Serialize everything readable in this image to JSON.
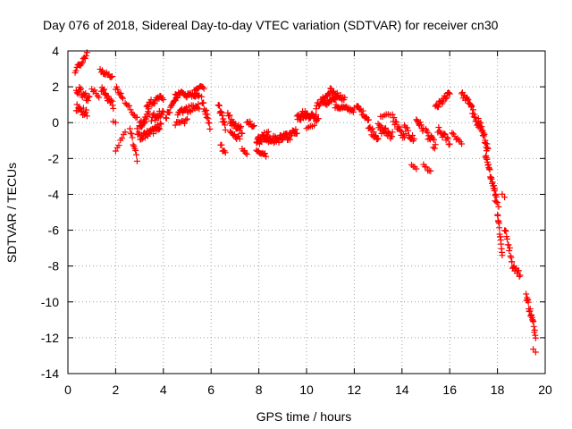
{
  "chart_data": {
    "type": "scatter",
    "title": "Day 076 of 2018, Sidereal Day-to-day VTEC variation (SDTVAR) for receiver cn30",
    "xlabel": "GPS time / hours",
    "ylabel": "SDTVAR / TECUs",
    "xlim": [
      0,
      20
    ],
    "ylim": [
      -14,
      4
    ],
    "xticks": [
      0,
      2,
      4,
      6,
      8,
      10,
      12,
      14,
      16,
      18,
      20
    ],
    "yticks": [
      -14,
      -12,
      -10,
      -8,
      -6,
      -4,
      -2,
      0,
      2,
      4
    ],
    "grid": true,
    "marker": "+",
    "color": "#ff0000",
    "series": [
      {
        "name": "SDTVAR",
        "segments": [
          {
            "x_start": 0.3,
            "x_end": 0.8,
            "y_start": 2.9,
            "y_end": 3.8,
            "spread": 0.25,
            "n": 14
          },
          {
            "x_start": 0.35,
            "x_end": 0.9,
            "y_start": 1.9,
            "y_end": 1.3,
            "spread": 0.45,
            "n": 18
          },
          {
            "x_start": 0.35,
            "x_end": 0.8,
            "y_start": 0.8,
            "y_end": 0.6,
            "spread": 0.5,
            "n": 16
          },
          {
            "x_start": 1.0,
            "x_end": 1.3,
            "y_start": 1.9,
            "y_end": 1.5,
            "spread": 0.25,
            "n": 6
          },
          {
            "x_start": 1.35,
            "x_end": 1.85,
            "y_start": 2.9,
            "y_end": 2.6,
            "spread": 0.2,
            "n": 12
          },
          {
            "x_start": 1.4,
            "x_end": 1.9,
            "y_start": 1.9,
            "y_end": 1.0,
            "spread": 0.45,
            "n": 18
          },
          {
            "x_start": 1.9,
            "x_end": 2.0,
            "y_start": 0.1,
            "y_end": 0.0,
            "spread": 0.1,
            "n": 2
          },
          {
            "x_start": 2.0,
            "x_end": 2.3,
            "y_start": 2.0,
            "y_end": 1.4,
            "spread": 0.3,
            "n": 8
          },
          {
            "x_start": 2.0,
            "x_end": 2.4,
            "y_start": -1.6,
            "y_end": -0.6,
            "spread": 0.3,
            "n": 7
          },
          {
            "x_start": 2.4,
            "x_end": 2.9,
            "y_start": 1.2,
            "y_end": 0.3,
            "spread": 0.3,
            "n": 10
          },
          {
            "x_start": 2.6,
            "x_end": 2.9,
            "y_start": -0.3,
            "y_end": -2.1,
            "spread": 0.3,
            "n": 10
          },
          {
            "x_start": 2.9,
            "x_end": 3.4,
            "y_start": -0.5,
            "y_end": 0.6,
            "spread": 0.5,
            "n": 22
          },
          {
            "x_start": 3.0,
            "x_end": 3.9,
            "y_start": -0.8,
            "y_end": -0.2,
            "spread": 0.4,
            "n": 32
          },
          {
            "x_start": 3.3,
            "x_end": 4.0,
            "y_start": 1.0,
            "y_end": 1.4,
            "spread": 0.35,
            "n": 20
          },
          {
            "x_start": 3.5,
            "x_end": 4.0,
            "y_start": 0.2,
            "y_end": 0.6,
            "spread": 0.5,
            "n": 16
          },
          {
            "x_start": 4.1,
            "x_end": 4.6,
            "y_start": 0.3,
            "y_end": 1.4,
            "spread": 0.3,
            "n": 16
          },
          {
            "x_start": 4.5,
            "x_end": 5.5,
            "y_start": 1.6,
            "y_end": 1.5,
            "spread": 0.3,
            "n": 30
          },
          {
            "x_start": 4.6,
            "x_end": 5.5,
            "y_start": 0.6,
            "y_end": 0.9,
            "spread": 0.35,
            "n": 26
          },
          {
            "x_start": 4.5,
            "x_end": 5.0,
            "y_start": -0.1,
            "y_end": 0.1,
            "spread": 0.25,
            "n": 10
          },
          {
            "x_start": 5.3,
            "x_end": 5.7,
            "y_start": 1.8,
            "y_end": 2.0,
            "spread": 0.2,
            "n": 10
          },
          {
            "x_start": 5.6,
            "x_end": 5.95,
            "y_start": 1.4,
            "y_end": -0.2,
            "spread": 0.4,
            "n": 14
          },
          {
            "x_start": 6.3,
            "x_end": 6.6,
            "y_start": 1.0,
            "y_end": -0.4,
            "spread": 0.4,
            "n": 14
          },
          {
            "x_start": 6.4,
            "x_end": 6.6,
            "y_start": -1.2,
            "y_end": -1.8,
            "spread": 0.3,
            "n": 6
          },
          {
            "x_start": 6.7,
            "x_end": 7.3,
            "y_start": 0.3,
            "y_end": -0.5,
            "spread": 0.5,
            "n": 24
          },
          {
            "x_start": 6.8,
            "x_end": 7.2,
            "y_start": -0.6,
            "y_end": -0.9,
            "spread": 0.25,
            "n": 10
          },
          {
            "x_start": 7.3,
            "x_end": 7.5,
            "y_start": -1.5,
            "y_end": -1.8,
            "spread": 0.2,
            "n": 5
          },
          {
            "x_start": 7.5,
            "x_end": 7.8,
            "y_start": 0.1,
            "y_end": -0.3,
            "spread": 0.3,
            "n": 8
          },
          {
            "x_start": 7.9,
            "x_end": 8.4,
            "y_start": -1.1,
            "y_end": -0.6,
            "spread": 0.45,
            "n": 24
          },
          {
            "x_start": 7.9,
            "x_end": 8.3,
            "y_start": -1.6,
            "y_end": -1.8,
            "spread": 0.3,
            "n": 10
          },
          {
            "x_start": 8.3,
            "x_end": 9.2,
            "y_start": -1.0,
            "y_end": -0.8,
            "spread": 0.45,
            "n": 36
          },
          {
            "x_start": 9.2,
            "x_end": 9.6,
            "y_start": -0.9,
            "y_end": -0.4,
            "spread": 0.4,
            "n": 16
          },
          {
            "x_start": 9.6,
            "x_end": 10.0,
            "y_start": 0.2,
            "y_end": 0.6,
            "spread": 0.5,
            "n": 16
          },
          {
            "x_start": 9.8,
            "x_end": 10.5,
            "y_start": 0.5,
            "y_end": 0.3,
            "spread": 0.4,
            "n": 22
          },
          {
            "x_start": 10.0,
            "x_end": 10.4,
            "y_start": -0.3,
            "y_end": 0.0,
            "spread": 0.2,
            "n": 6
          },
          {
            "x_start": 10.4,
            "x_end": 11.0,
            "y_start": 0.9,
            "y_end": 1.7,
            "spread": 0.3,
            "n": 22
          },
          {
            "x_start": 10.7,
            "x_end": 11.3,
            "y_start": 1.0,
            "y_end": 1.4,
            "spread": 0.3,
            "n": 20
          },
          {
            "x_start": 11.0,
            "x_end": 11.6,
            "y_start": 1.8,
            "y_end": 1.3,
            "spread": 0.25,
            "n": 18
          },
          {
            "x_start": 11.2,
            "x_end": 12.0,
            "y_start": 0.9,
            "y_end": 0.7,
            "spread": 0.25,
            "n": 22
          },
          {
            "x_start": 12.1,
            "x_end": 12.6,
            "y_start": 0.9,
            "y_end": 0.2,
            "spread": 0.3,
            "n": 14
          },
          {
            "x_start": 12.6,
            "x_end": 13.0,
            "y_start": -0.3,
            "y_end": -0.8,
            "spread": 0.45,
            "n": 14
          },
          {
            "x_start": 13.0,
            "x_end": 13.6,
            "y_start": -0.3,
            "y_end": -0.7,
            "spread": 0.5,
            "n": 22
          },
          {
            "x_start": 13.1,
            "x_end": 13.5,
            "y_start": 0.4,
            "y_end": 0.4,
            "spread": 0.2,
            "n": 6
          },
          {
            "x_start": 13.6,
            "x_end": 14.1,
            "y_start": 0.3,
            "y_end": -0.9,
            "spread": 0.45,
            "n": 16
          },
          {
            "x_start": 14.1,
            "x_end": 14.5,
            "y_start": -0.3,
            "y_end": -1.0,
            "spread": 0.45,
            "n": 14
          },
          {
            "x_start": 14.4,
            "x_end": 14.6,
            "y_start": -2.3,
            "y_end": -2.6,
            "spread": 0.2,
            "n": 4
          },
          {
            "x_start": 14.6,
            "x_end": 14.9,
            "y_start": 0.2,
            "y_end": -0.4,
            "spread": 0.35,
            "n": 10
          },
          {
            "x_start": 14.9,
            "x_end": 15.2,
            "y_start": -2.4,
            "y_end": -2.7,
            "spread": 0.2,
            "n": 6
          },
          {
            "x_start": 15.0,
            "x_end": 15.4,
            "y_start": -0.6,
            "y_end": -1.3,
            "spread": 0.5,
            "n": 14
          },
          {
            "x_start": 15.4,
            "x_end": 16.0,
            "y_start": 0.8,
            "y_end": 1.6,
            "spread": 0.4,
            "n": 20
          },
          {
            "x_start": 15.5,
            "x_end": 16.0,
            "y_start": -0.4,
            "y_end": -1.1,
            "spread": 0.4,
            "n": 14
          },
          {
            "x_start": 16.1,
            "x_end": 16.5,
            "y_start": -0.6,
            "y_end": -1.1,
            "spread": 0.3,
            "n": 8
          },
          {
            "x_start": 16.5,
            "x_end": 16.9,
            "y_start": 1.6,
            "y_end": 1.0,
            "spread": 0.3,
            "n": 14
          },
          {
            "x_start": 16.9,
            "x_end": 17.2,
            "y_start": 0.9,
            "y_end": -0.4,
            "spread": 0.4,
            "n": 12
          },
          {
            "x_start": 17.2,
            "x_end": 17.6,
            "y_start": 0.3,
            "y_end": -1.6,
            "spread": 0.5,
            "n": 22
          },
          {
            "x_start": 17.5,
            "x_end": 17.95,
            "y_start": -1.9,
            "y_end": -4.1,
            "spread": 0.35,
            "n": 24
          },
          {
            "x_start": 17.9,
            "x_end": 18.05,
            "y_start": -4.3,
            "y_end": -4.6,
            "spread": 0.2,
            "n": 4
          },
          {
            "x_start": 18.0,
            "x_end": 18.2,
            "y_start": -5.0,
            "y_end": -7.3,
            "spread": 0.5,
            "n": 14
          },
          {
            "x_start": 18.2,
            "x_end": 18.3,
            "y_start": -4.0,
            "y_end": -4.2,
            "spread": 0.1,
            "n": 2
          },
          {
            "x_start": 18.3,
            "x_end": 18.6,
            "y_start": -5.9,
            "y_end": -7.6,
            "spread": 0.35,
            "n": 12
          },
          {
            "x_start": 18.6,
            "x_end": 18.95,
            "y_start": -7.9,
            "y_end": -8.5,
            "spread": 0.35,
            "n": 12
          },
          {
            "x_start": 19.2,
            "x_end": 19.6,
            "y_start": -9.6,
            "y_end": -11.8,
            "spread": 0.45,
            "n": 22
          },
          {
            "x_start": 19.5,
            "x_end": 19.6,
            "y_start": -12.6,
            "y_end": -12.8,
            "spread": 0.1,
            "n": 2
          }
        ]
      }
    ]
  }
}
